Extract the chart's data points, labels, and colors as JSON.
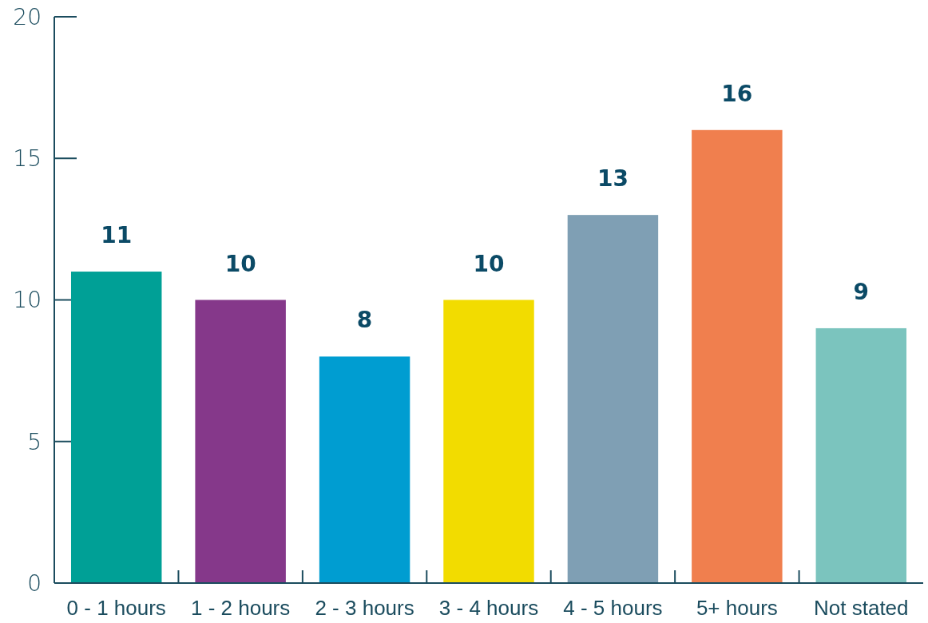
{
  "chart_data": {
    "type": "bar",
    "categories": [
      "0 - 1 hours",
      "1 - 2 hours",
      "2 - 3 hours",
      "3 - 4 hours",
      "4 - 5 hours",
      "5+ hours",
      "Not stated"
    ],
    "values": [
      11,
      10,
      8,
      10,
      13,
      16,
      9
    ],
    "colors": [
      "#00a096",
      "#85388a",
      "#009dd1",
      "#f2dc00",
      "#7f9fb4",
      "#f07f4e",
      "#7bc4be"
    ],
    "ylim": [
      0,
      20
    ],
    "yticks": [
      0,
      5,
      10,
      15,
      20
    ],
    "data_labels": true,
    "grid": false
  }
}
